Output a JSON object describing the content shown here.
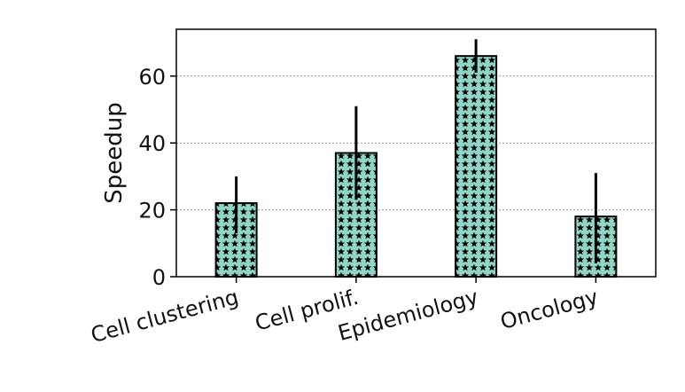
{
  "chart_data": {
    "type": "bar",
    "title": "",
    "xlabel": "",
    "ylabel": "Speedup",
    "categories": [
      "Cell clustering",
      "Cell prolif.",
      "Epidemiology",
      "Oncology"
    ],
    "values": [
      22,
      37,
      66,
      18
    ],
    "error_low": [
      13,
      23,
      61,
      4
    ],
    "error_high": [
      30,
      51,
      71,
      31
    ],
    "ylim": [
      0,
      74
    ],
    "yticks": [
      0,
      20,
      40,
      60
    ],
    "ytick_labels": [
      "0",
      "20",
      "40",
      "60"
    ],
    "grid": "y-dotted",
    "bar_fill": "#8fd6c6",
    "bar_pattern": "stars",
    "bar_edge": "#000000",
    "errorbar_color": "#000000",
    "grid_color": "#9a9a9a"
  }
}
